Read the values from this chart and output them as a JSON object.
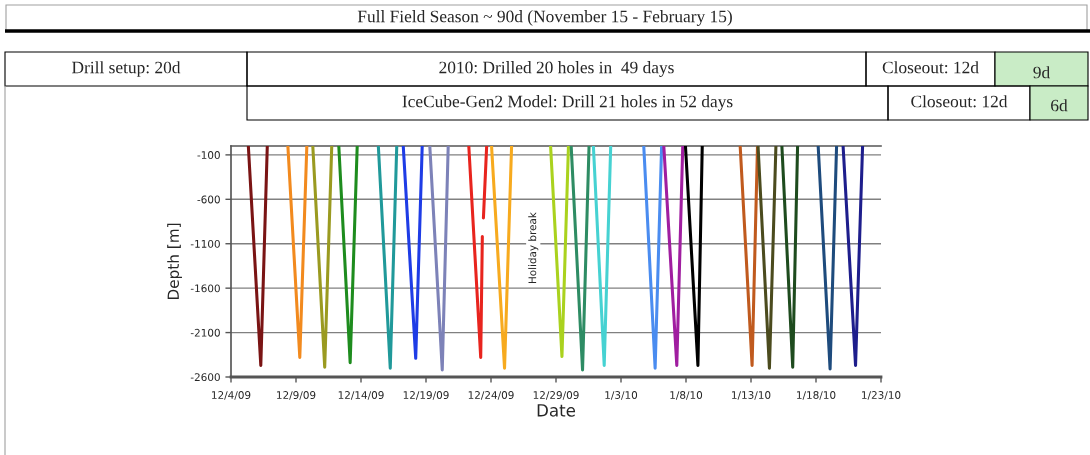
{
  "chart_data": [
    {
      "type": "other",
      "title": "Full Field Season ~ 90d (November 15 - February 15)",
      "annotations": [
        "Drill setup: 20d",
        "2010: Drilled 20 holes in  49 days",
        "Closeout: 12d",
        "9d",
        "IceCube-Gen2 Model: Drill 21 holes in 52 days",
        "Closeout: 12d",
        "6d"
      ]
    },
    {
      "type": "line",
      "xlabel": "Date",
      "ylabel": "Depth [m]",
      "xlim": [
        "2009-12-04",
        "2010-01-23"
      ],
      "xticks": [
        {
          "value": "2009-12-04",
          "label": "12/4/09"
        },
        {
          "value": "2009-12-09",
          "label": "12/9/09"
        },
        {
          "value": "2009-12-14",
          "label": "12/14/09"
        },
        {
          "value": "2009-12-19",
          "label": "12/19/09"
        },
        {
          "value": "2009-12-24",
          "label": "12/24/09"
        },
        {
          "value": "2009-12-29",
          "label": "12/29/09"
        },
        {
          "value": "2010-01-03",
          "label": "1/3/10"
        },
        {
          "value": "2010-01-08",
          "label": "1/8/10"
        },
        {
          "value": "2010-01-13",
          "label": "1/13/10"
        },
        {
          "value": "2010-01-18",
          "label": "1/18/10"
        },
        {
          "value": "2010-01-23",
          "label": "1/23/10"
        }
      ],
      "ylim": [
        -2600,
        0
      ],
      "yticks": [
        -100,
        -600,
        -1100,
        -1600,
        -2100,
        -2600
      ],
      "grid": "y",
      "annotations": [
        "Holiday break"
      ],
      "series": [
        {
          "color": "#7a1414",
          "x": [
            "2009-12-05T08:00",
            "2009-12-06T07:00",
            "2009-12-06T19:00"
          ],
          "values": [
            0,
            -2470,
            0
          ]
        },
        {
          "color": "#f28a1e",
          "x": [
            "2009-12-08T09:00",
            "2009-12-09T07:00",
            "2009-12-09T20:00"
          ],
          "values": [
            0,
            -2380,
            0
          ]
        },
        {
          "color": "#9a9a20",
          "x": [
            "2009-12-10T07:00",
            "2009-12-11T05:00",
            "2009-12-11T18:00"
          ],
          "values": [
            0,
            -2490,
            0
          ]
        },
        {
          "color": "#1e8c1e",
          "x": [
            "2009-12-12T07:00",
            "2009-12-13T04:00",
            "2009-12-13T17:00"
          ],
          "values": [
            0,
            -2440,
            0
          ]
        },
        {
          "color": "#20999a",
          "x": [
            "2009-12-15T08:00",
            "2009-12-16T06:00",
            "2009-12-16T18:00"
          ],
          "values": [
            0,
            -2500,
            0
          ]
        },
        {
          "color": "#1e3ce6",
          "x": [
            "2009-12-17T06:00",
            "2009-12-18T05:00",
            "2009-12-18T17:00"
          ],
          "values": [
            0,
            -2390,
            0
          ]
        },
        {
          "color": "#7d82b8",
          "x": [
            "2009-12-19T07:00",
            "2009-12-20T06:00",
            "2009-12-20T17:00"
          ],
          "values": [
            0,
            -2520,
            0
          ]
        },
        {
          "color": "#e8241e",
          "x": [
            "2009-12-22T07:00",
            "2009-12-23T05:00",
            "2009-12-23T08:00",
            "2009-12-23T09:00",
            "2009-12-23T10:00",
            "2009-12-23T16:00"
          ],
          "values": [
            0,
            -2380,
            -1020,
            null,
            -810,
            0
          ]
        },
        {
          "color": "#f7aa1e",
          "x": [
            "2009-12-24T01:00",
            "2009-12-25T01:00",
            "2009-12-25T14:00"
          ],
          "values": [
            0,
            -2500,
            0
          ]
        },
        {
          "color": "#aad21e",
          "x": [
            "2009-12-28T14:00",
            "2009-12-29T11:00",
            "2009-12-29T23:00"
          ],
          "values": [
            0,
            -2370,
            0
          ]
        },
        {
          "color": "#2e8c64",
          "x": [
            "2009-12-30T04:00",
            "2009-12-31T01:00",
            "2009-12-31T13:00"
          ],
          "values": [
            0,
            -2520,
            0
          ]
        },
        {
          "color": "#46d2d2",
          "x": [
            "2009-12-31T21:00",
            "2010-01-01T17:00",
            "2010-01-02T05:00"
          ],
          "values": [
            0,
            -2470,
            0
          ]
        },
        {
          "color": "#4a8cf0",
          "x": [
            "2010-01-04T18:00",
            "2010-01-05T15:00",
            "2010-01-06T03:00"
          ],
          "values": [
            0,
            -2500,
            0
          ]
        },
        {
          "color": "#a01ea0",
          "x": [
            "2010-01-06T07:00",
            "2010-01-07T07:00",
            "2010-01-07T18:00"
          ],
          "values": [
            0,
            -2470,
            0
          ]
        },
        {
          "color": "#000000",
          "x": [
            "2010-01-07T23:00",
            "2010-01-08T22:00",
            "2010-01-09T06:00"
          ],
          "values": [
            0,
            -2470,
            0
          ]
        },
        {
          "color": "#c05a1e",
          "x": [
            "2010-01-12T04:00",
            "2010-01-13T02:00",
            "2010-01-13T12:00"
          ],
          "values": [
            0,
            -2470,
            0
          ]
        },
        {
          "color": "#4b4b1e",
          "x": [
            "2010-01-13T13:00",
            "2010-01-14T10:00",
            "2010-01-14T22:00"
          ],
          "values": [
            0,
            -2500,
            0
          ]
        },
        {
          "color": "#1e4b1e",
          "x": [
            "2010-01-15T09:00",
            "2010-01-16T05:00",
            "2010-01-16T14:00"
          ],
          "values": [
            0,
            -2490,
            0
          ]
        },
        {
          "color": "#1e4b7d",
          "x": [
            "2010-01-18T04:00",
            "2010-01-19T02:00",
            "2010-01-19T14:00"
          ],
          "values": [
            0,
            -2510,
            0
          ]
        },
        {
          "color": "#1e1e8c",
          "x": [
            "2010-01-20T02:00",
            "2010-01-21T01:00",
            "2010-01-21T14:00"
          ],
          "values": [
            0,
            -2470,
            0
          ]
        }
      ]
    }
  ]
}
